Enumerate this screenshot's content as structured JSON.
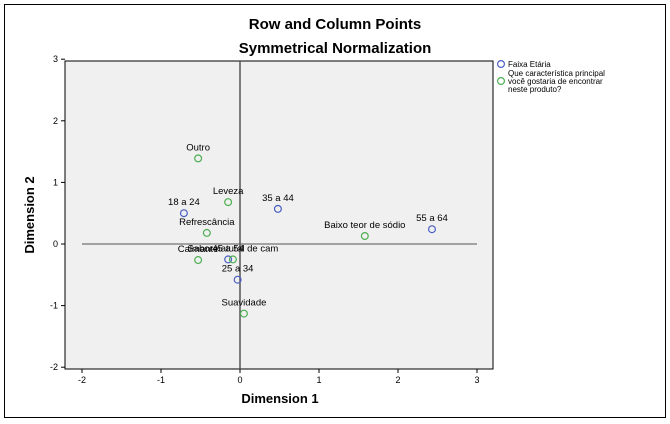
{
  "chart_data": {
    "type": "scatter",
    "title": "Row and Column Points",
    "subtitle": "Symmetrical Normalization",
    "xlabel": "Dimension 1",
    "ylabel": "Dimension 2",
    "xlim": [
      -2.3,
      3.3
    ],
    "ylim": [
      -2,
      3
    ],
    "x_ticks": [
      "-2",
      "-1",
      "0",
      "1",
      "2",
      "3"
    ],
    "y_ticks": [
      "3",
      "2",
      "1",
      "0",
      "-1",
      "-2"
    ],
    "reference_lines": {
      "x": 0,
      "y": 0
    },
    "legend_position": "right-top",
    "series": [
      {
        "name": "Faixa Etária",
        "color": "#4a5ec4",
        "points": [
          {
            "label": "18 a 24",
            "x": -0.71,
            "y": 0.5
          },
          {
            "label": "35 a 44",
            "x": 0.48,
            "y": 0.57
          },
          {
            "label": "55 a 64",
            "x": 2.43,
            "y": 0.24
          },
          {
            "label": "45 a 54",
            "x": -0.15,
            "y": -0.25
          },
          {
            "label": "25 a 34",
            "x": -0.03,
            "y": -0.58
          }
        ]
      },
      {
        "name": "Que característica principal você gostaria de encontrar neste produto?",
        "color": "#4caf50",
        "points": [
          {
            "label": "Outro",
            "x": -0.53,
            "y": 1.39
          },
          {
            "label": "Leveza",
            "x": -0.15,
            "y": 0.68
          },
          {
            "label": "Refrescância",
            "x": -0.42,
            "y": 0.18
          },
          {
            "label": "Baixo teor de sódio",
            "x": 1.58,
            "y": 0.13
          },
          {
            "label": "Sabor natural de cam",
            "x": -0.09,
            "y": -0.25
          },
          {
            "label": "Calmante",
            "x": -0.53,
            "y": -0.26
          },
          {
            "label": "Suavidade",
            "x": 0.05,
            "y": -1.13
          }
        ]
      }
    ],
    "legend_lines": [
      [
        "Faixa Etária"
      ],
      [
        "Que característica principal",
        "você gostaria de encontrar",
        "neste produto?"
      ]
    ]
  }
}
